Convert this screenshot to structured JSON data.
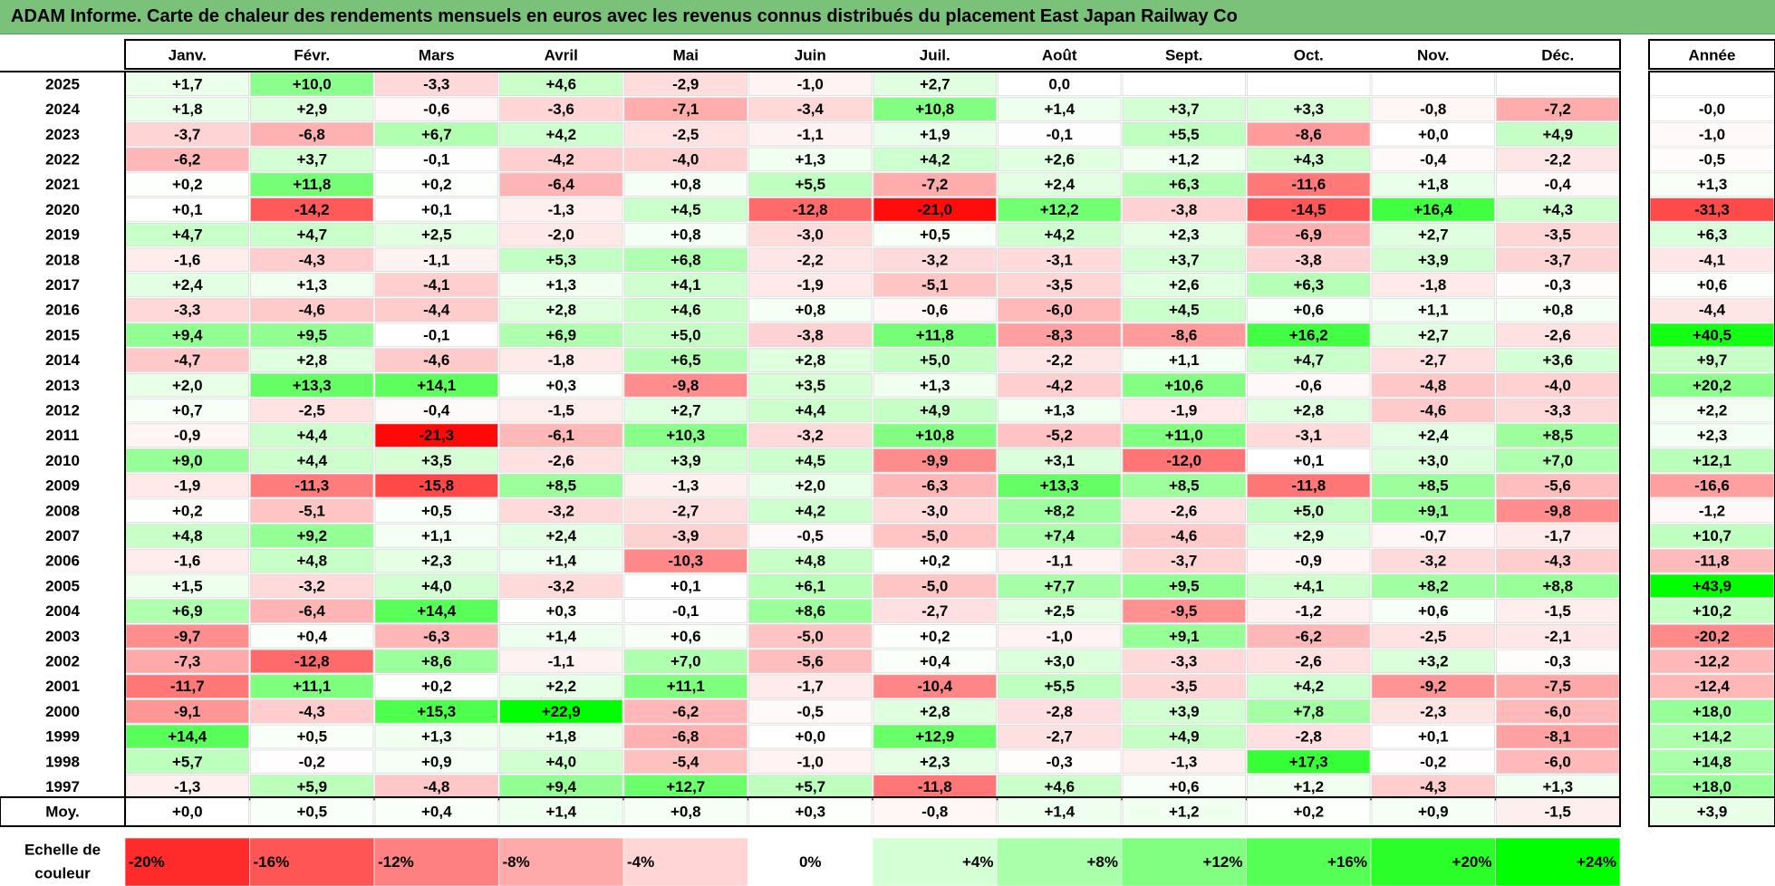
{
  "title": "ADAM Informe. Carte de chaleur des rendements mensuels en euros avec les revenus connus distribués du placement East Japan Railway Co",
  "chart_data": {
    "type": "heatmap",
    "columns": [
      "Janv.",
      "Févr.",
      "Mars",
      "Avril",
      "Mai",
      "Juin",
      "Juil.",
      "Août",
      "Sept.",
      "Oct.",
      "Nov.",
      "Déc."
    ],
    "year_column_label": "Année",
    "rows": [
      {
        "year": "2025",
        "values": [
          "+1,7",
          "+10,0",
          "-3,3",
          "+4,6",
          "-2,9",
          "-1,0",
          "+2,7",
          "0,0",
          "",
          "",
          "",
          ""
        ],
        "annual": ""
      },
      {
        "year": "2024",
        "values": [
          "+1,8",
          "+2,9",
          "-0,6",
          "-3,6",
          "-7,1",
          "-3,4",
          "+10,8",
          "+1,4",
          "+3,7",
          "+3,3",
          "-0,8",
          "-7,2"
        ],
        "annual": "-0,0"
      },
      {
        "year": "2023",
        "values": [
          "-3,7",
          "-6,8",
          "+6,7",
          "+4,2",
          "-2,5",
          "-1,1",
          "+1,9",
          "-0,1",
          "+5,5",
          "-8,6",
          "+0,0",
          "+4,9"
        ],
        "annual": "-1,0"
      },
      {
        "year": "2022",
        "values": [
          "-6,2",
          "+3,7",
          "-0,1",
          "-4,2",
          "-4,0",
          "+1,3",
          "+4,2",
          "+2,6",
          "+1,2",
          "+4,3",
          "-0,4",
          "-2,2"
        ],
        "annual": "-0,5"
      },
      {
        "year": "2021",
        "values": [
          "+0,2",
          "+11,8",
          "+0,2",
          "-6,4",
          "+0,8",
          "+5,5",
          "-7,2",
          "+2,4",
          "+6,3",
          "-11,6",
          "+1,8",
          "-0,4"
        ],
        "annual": "+1,3"
      },
      {
        "year": "2020",
        "values": [
          "+0,1",
          "-14,2",
          "+0,1",
          "-1,3",
          "+4,5",
          "-12,8",
          "-21,0",
          "+12,2",
          "-3,8",
          "-14,5",
          "+16,4",
          "+4,3"
        ],
        "annual": "-31,3"
      },
      {
        "year": "2019",
        "values": [
          "+4,7",
          "+4,7",
          "+2,5",
          "-2,0",
          "+0,8",
          "-3,0",
          "+0,5",
          "+4,2",
          "+2,3",
          "-6,9",
          "+2,7",
          "-3,5"
        ],
        "annual": "+6,3"
      },
      {
        "year": "2018",
        "values": [
          "-1,6",
          "-4,3",
          "-1,1",
          "+5,3",
          "+6,8",
          "-2,2",
          "-3,2",
          "-3,1",
          "+3,7",
          "-3,8",
          "+3,9",
          "-3,7"
        ],
        "annual": "-4,1"
      },
      {
        "year": "2017",
        "values": [
          "+2,4",
          "+1,3",
          "-4,1",
          "+1,3",
          "+4,1",
          "-1,9",
          "-5,1",
          "-3,5",
          "+2,6",
          "+6,3",
          "-1,8",
          "-0,3"
        ],
        "annual": "+0,6"
      },
      {
        "year": "2016",
        "values": [
          "-3,3",
          "-4,6",
          "-4,4",
          "+2,8",
          "+4,6",
          "+0,8",
          "-0,6",
          "-6,0",
          "+4,5",
          "+0,6",
          "+1,1",
          "+0,8"
        ],
        "annual": "-4,4"
      },
      {
        "year": "2015",
        "values": [
          "+9,4",
          "+9,5",
          "-0,1",
          "+6,9",
          "+5,0",
          "-3,8",
          "+11,8",
          "-8,3",
          "-8,6",
          "+16,2",
          "+2,7",
          "-2,6"
        ],
        "annual": "+40,5"
      },
      {
        "year": "2014",
        "values": [
          "-4,7",
          "+2,8",
          "-4,6",
          "-1,8",
          "+6,5",
          "+2,8",
          "+5,0",
          "-2,2",
          "+1,1",
          "+4,7",
          "-2,7",
          "+3,6"
        ],
        "annual": "+9,7"
      },
      {
        "year": "2013",
        "values": [
          "+2,0",
          "+13,3",
          "+14,1",
          "+0,3",
          "-9,8",
          "+3,5",
          "+1,3",
          "-4,2",
          "+10,6",
          "-0,6",
          "-4,8",
          "-4,0"
        ],
        "annual": "+20,2"
      },
      {
        "year": "2012",
        "values": [
          "+0,7",
          "-2,5",
          "-0,4",
          "-1,5",
          "+2,7",
          "+4,4",
          "+4,9",
          "+1,3",
          "-1,9",
          "+2,8",
          "-4,6",
          "-3,3"
        ],
        "annual": "+2,2"
      },
      {
        "year": "2011",
        "values": [
          "-0,9",
          "+4,4",
          "-21,3",
          "-6,1",
          "+10,3",
          "-3,2",
          "+10,8",
          "-5,2",
          "+11,0",
          "-3,1",
          "+2,4",
          "+8,5"
        ],
        "annual": "+2,3"
      },
      {
        "year": "2010",
        "values": [
          "+9,0",
          "+4,4",
          "+3,5",
          "-2,6",
          "+3,9",
          "+4,5",
          "-9,9",
          "+3,1",
          "-12,0",
          "+0,1",
          "+3,0",
          "+7,0"
        ],
        "annual": "+12,1"
      },
      {
        "year": "2009",
        "values": [
          "-1,9",
          "-11,3",
          "-15,8",
          "+8,5",
          "-1,3",
          "+2,0",
          "-6,3",
          "+13,3",
          "+8,5",
          "-11,8",
          "+8,5",
          "-5,6"
        ],
        "annual": "-16,6"
      },
      {
        "year": "2008",
        "values": [
          "+0,2",
          "-5,1",
          "+0,5",
          "-3,2",
          "-2,7",
          "+4,2",
          "-3,0",
          "+8,2",
          "-2,6",
          "+5,0",
          "+9,1",
          "-9,8"
        ],
        "annual": "-1,2"
      },
      {
        "year": "2007",
        "values": [
          "+4,8",
          "+9,2",
          "+1,1",
          "+2,4",
          "-3,9",
          "-0,5",
          "-5,0",
          "+7,4",
          "-4,6",
          "+2,9",
          "-0,7",
          "-1,7"
        ],
        "annual": "+10,7"
      },
      {
        "year": "2006",
        "values": [
          "-1,6",
          "+4,8",
          "+2,3",
          "+1,4",
          "-10,3",
          "+4,8",
          "+0,2",
          "-1,1",
          "-3,7",
          "-0,9",
          "-3,2",
          "-4,3"
        ],
        "annual": "-11,8"
      },
      {
        "year": "2005",
        "values": [
          "+1,5",
          "-3,2",
          "+4,0",
          "-3,2",
          "+0,1",
          "+6,1",
          "-5,0",
          "+7,7",
          "+9,5",
          "+4,1",
          "+8,2",
          "+8,8"
        ],
        "annual": "+43,9"
      },
      {
        "year": "2004",
        "values": [
          "+6,9",
          "-6,4",
          "+14,4",
          "+0,3",
          "-0,1",
          "+8,6",
          "-2,7",
          "+2,5",
          "-9,5",
          "-1,2",
          "+0,6",
          "-1,5"
        ],
        "annual": "+10,2"
      },
      {
        "year": "2003",
        "values": [
          "-9,7",
          "+0,4",
          "-6,3",
          "+1,4",
          "+0,6",
          "-5,0",
          "+0,2",
          "-1,0",
          "+9,1",
          "-6,2",
          "-2,5",
          "-2,1"
        ],
        "annual": "-20,2"
      },
      {
        "year": "2002",
        "values": [
          "-7,3",
          "-12,8",
          "+8,6",
          "-1,1",
          "+7,0",
          "-5,6",
          "+0,4",
          "+3,0",
          "-3,3",
          "-2,6",
          "+3,2",
          "-0,3"
        ],
        "annual": "-12,2"
      },
      {
        "year": "2001",
        "values": [
          "-11,7",
          "+11,1",
          "+0,2",
          "+2,2",
          "+11,1",
          "-1,7",
          "-10,4",
          "+5,5",
          "-3,5",
          "+4,2",
          "-9,2",
          "-7,5"
        ],
        "annual": "-12,4"
      },
      {
        "year": "2000",
        "values": [
          "-9,1",
          "-4,3",
          "+15,3",
          "+22,9",
          "-6,2",
          "-0,5",
          "+2,8",
          "-2,8",
          "+3,9",
          "+7,8",
          "-2,3",
          "-6,0"
        ],
        "annual": "+18,0"
      },
      {
        "year": "1999",
        "values": [
          "+14,4",
          "+0,5",
          "+1,3",
          "+1,8",
          "-6,8",
          "+0,0",
          "+12,9",
          "-2,7",
          "+4,9",
          "-2,8",
          "+0,1",
          "-8,1"
        ],
        "annual": "+14,2"
      },
      {
        "year": "1998",
        "values": [
          "+5,7",
          "-0,2",
          "+0,9",
          "+4,0",
          "-5,4",
          "-1,0",
          "+2,3",
          "-0,3",
          "-1,3",
          "+17,3",
          "-0,2",
          "-6,0"
        ],
        "annual": "+14,8"
      },
      {
        "year": "1997",
        "values": [
          "-1,3",
          "+5,9",
          "-4,8",
          "+9,4",
          "+12,7",
          "+5,7",
          "-11,8",
          "+4,6",
          "+0,6",
          "+1,2",
          "-4,3",
          "+1,3"
        ],
        "annual": "+18,0"
      }
    ],
    "average": {
      "label": "Moy.",
      "values": [
        "+0,0",
        "+0,5",
        "+0,4",
        "+1,4",
        "+0,8",
        "+0,3",
        "-0,8",
        "+1,4",
        "+1,2",
        "+0,2",
        "+0,9",
        "-1,5"
      ],
      "annual": "+3,9"
    },
    "scale": {
      "label_line1": "Echelle de",
      "label_line2": "couleur",
      "steps": [
        "-20%",
        "-16%",
        "-12%",
        "-8%",
        "-4%",
        "0%",
        "+4%",
        "+8%",
        "+12%",
        "+16%",
        "+20%",
        "+24%"
      ]
    },
    "colors": {
      "negative_max": "#ff0000",
      "neutral": "#ffffff",
      "positive_max": "#00ff00",
      "title_bar": "#7ac27a"
    }
  }
}
